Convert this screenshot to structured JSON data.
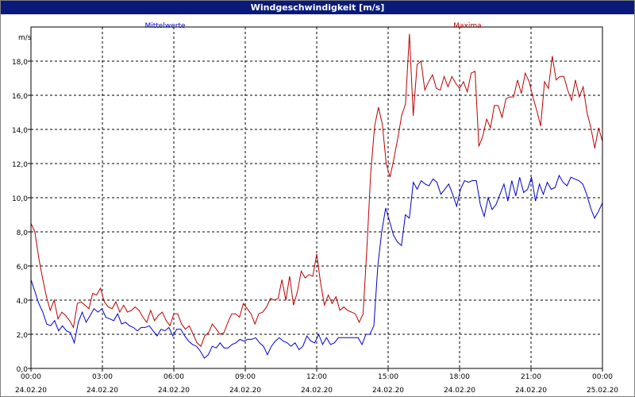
{
  "window": {
    "title": "Windgeschwindigkeit [m/s]"
  },
  "chart_data": {
    "type": "line",
    "title": "Windgeschwindigkeit [m/s]",
    "ylabel": "m/s",
    "xlabel": "",
    "xlim": [
      0,
      24
    ],
    "ylim": [
      0,
      20
    ],
    "grid": true,
    "legend": "top",
    "y_ticks": [
      "0,0",
      "2,0",
      "4,0",
      "6,0",
      "8,0",
      "10,0",
      "12,0",
      "14,0",
      "16,0",
      "18,0"
    ],
    "x_ticks": [
      {
        "time": "00:00",
        "date": "24.02.20"
      },
      {
        "time": "03:00",
        "date": "24.02.20"
      },
      {
        "time": "06:00",
        "date": "24.02.20"
      },
      {
        "time": "09:00",
        "date": "24.02.20"
      },
      {
        "time": "12:00",
        "date": "24.02.20"
      },
      {
        "time": "15:00",
        "date": "24.02.20"
      },
      {
        "time": "18:00",
        "date": "24.02.20"
      },
      {
        "time": "21:00",
        "date": "24.02.20"
      },
      {
        "time": "00:00",
        "date": "25.02.20"
      }
    ],
    "series": [
      {
        "name": "Mittelwerte",
        "color": "#0000cc",
        "values": [
          5.2,
          4.5,
          3.8,
          3.3,
          2.6,
          2.5,
          2.8,
          2.2,
          2.5,
          2.2,
          2.1,
          1.5,
          2.7,
          3.3,
          2.7,
          3.1,
          3.5,
          3.3,
          3.5,
          3.0,
          2.9,
          2.8,
          3.2,
          2.6,
          2.7,
          2.5,
          2.4,
          2.2,
          2.4,
          2.4,
          2.5,
          2.2,
          1.9,
          2.3,
          2.2,
          2.4,
          1.9,
          2.3,
          2.3,
          1.9,
          1.6,
          1.4,
          1.3,
          1.0,
          0.6,
          0.8,
          1.3,
          1.2,
          1.5,
          1.2,
          1.2,
          1.4,
          1.5,
          1.7,
          1.6,
          1.7,
          1.7,
          1.8,
          1.5,
          1.3,
          0.8,
          1.3,
          1.6,
          1.8,
          1.6,
          1.5,
          1.3,
          1.5,
          1.1,
          1.3,
          1.9,
          1.6,
          1.5,
          2.0,
          1.4,
          1.8,
          1.4,
          1.5,
          1.8,
          1.8,
          1.8,
          1.8,
          1.8,
          1.8,
          1.4,
          2.0,
          2.0,
          2.5,
          6.0,
          8.0,
          9.4,
          8.6,
          7.8,
          7.4,
          7.2,
          9.0,
          8.8,
          10.9,
          10.5,
          11.0,
          10.8,
          10.7,
          11.1,
          10.9,
          10.2,
          10.5,
          10.8,
          10.2,
          9.5,
          10.5,
          11.0,
          10.9,
          11.0,
          11.0,
          9.6,
          8.9,
          10.0,
          9.3,
          9.6,
          10.2,
          10.8,
          9.8,
          11.0,
          10.1,
          11.2,
          10.3,
          10.5,
          11.2,
          9.8,
          10.8,
          10.2,
          10.9,
          10.5,
          10.6,
          11.3,
          10.9,
          10.7,
          11.2,
          11.1,
          11.0,
          10.8,
          10.2,
          9.4,
          8.8,
          9.2,
          9.7
        ]
      },
      {
        "name": "Maxima",
        "color": "#bb0000",
        "values": [
          8.5,
          8.0,
          6.5,
          5.3,
          4.2,
          3.4,
          4.0,
          2.9,
          3.3,
          3.1,
          2.8,
          2.4,
          3.8,
          3.9,
          3.7,
          3.5,
          4.4,
          4.3,
          4.7,
          3.9,
          3.6,
          3.5,
          3.9,
          3.3,
          3.7,
          3.3,
          3.4,
          3.6,
          3.4,
          3.0,
          2.7,
          3.4,
          2.8,
          3.1,
          3.3,
          2.8,
          2.5,
          3.2,
          3.2,
          2.6,
          2.3,
          2.5,
          2.0,
          1.5,
          1.3,
          1.9,
          2.1,
          2.6,
          2.3,
          2.0,
          2.1,
          2.7,
          3.2,
          3.2,
          3.0,
          3.8,
          3.5,
          3.2,
          2.6,
          3.2,
          3.3,
          3.6,
          4.1,
          4.0,
          4.1,
          5.2,
          4.0,
          5.4,
          3.7,
          4.5,
          5.7,
          5.3,
          5.5,
          5.4,
          6.7,
          5.0,
          3.7,
          4.3,
          3.8,
          4.2,
          3.4,
          3.6,
          3.4,
          3.3,
          3.2,
          2.7,
          3.2,
          7.0,
          11.5,
          14.2,
          15.3,
          14.3,
          12.0,
          11.2,
          12.3,
          13.5,
          14.8,
          15.5,
          19.6,
          14.8,
          17.8,
          18.0,
          16.3,
          16.8,
          17.2,
          16.4,
          16.3,
          17.1,
          16.5,
          17.1,
          16.7,
          16.4,
          16.8,
          16.2,
          17.3,
          17.4,
          13.0,
          13.6,
          14.6,
          14.1,
          15.4,
          15.4,
          14.7,
          15.8,
          15.9,
          15.9,
          16.9,
          16.1,
          17.3,
          16.8,
          15.9,
          15.1,
          14.2,
          16.8,
          16.4,
          18.3,
          16.9,
          17.1,
          17.1,
          16.3,
          15.7,
          16.9,
          15.9,
          16.5,
          15.0,
          14.1,
          12.9,
          14.1,
          13.3
        ]
      }
    ]
  }
}
